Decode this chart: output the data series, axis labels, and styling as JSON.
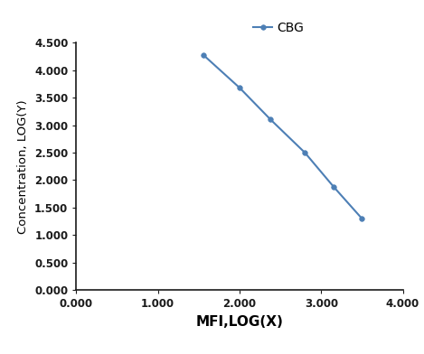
{
  "x": [
    1.553,
    2.0,
    2.38,
    2.8,
    3.155,
    3.5
  ],
  "y": [
    4.278,
    3.678,
    3.1,
    2.5,
    1.875,
    1.301
  ],
  "line_color": "#4d7fb5",
  "marker_color": "#4d7fb5",
  "marker_style": "o",
  "marker_size": 4,
  "line_width": 1.5,
  "xlabel": "MFI,LOG(X)",
  "ylabel": "Concentration, LOG(Y)",
  "legend_label": "CBG",
  "xlim": [
    0.0,
    4.0
  ],
  "ylim": [
    0.0,
    4.5
  ],
  "xticks": [
    0.0,
    1.0,
    2.0,
    3.0,
    4.0
  ],
  "yticks": [
    0.0,
    0.5,
    1.0,
    1.5,
    2.0,
    2.5,
    3.0,
    3.5,
    4.0,
    4.5
  ],
  "xtick_labels": [
    "0.000",
    "1.000",
    "2.000",
    "3.000",
    "4.000"
  ],
  "ytick_labels": [
    "0.000",
    "0.500",
    "1.000",
    "1.500",
    "2.000",
    "2.500",
    "3.000",
    "3.500",
    "4.000",
    "4.500"
  ],
  "xlabel_fontsize": 11,
  "ylabel_fontsize": 9.5,
  "tick_fontsize": 8.5,
  "legend_fontsize": 10,
  "background_color": "#ffffff",
  "spine_color": "#1a1a1a"
}
